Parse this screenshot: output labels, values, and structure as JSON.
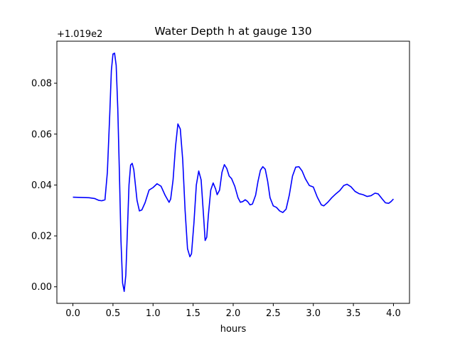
{
  "chart_data": {
    "type": "line",
    "title": "Water Depth h at gauge 130",
    "xlabel": "hours",
    "ylabel": "",
    "offset_label": "+1.019e2",
    "xlim": [
      -0.2,
      4.2
    ],
    "ylim": [
      -0.0065,
      0.0965
    ],
    "xticks": [
      0.0,
      0.5,
      1.0,
      1.5,
      2.0,
      2.5,
      3.0,
      3.5,
      4.0
    ],
    "xtick_labels": [
      "0.0",
      "0.5",
      "1.0",
      "1.5",
      "2.0",
      "2.5",
      "3.0",
      "3.5",
      "4.0"
    ],
    "yticks": [
      0.0,
      0.02,
      0.04,
      0.06,
      0.08
    ],
    "ytick_labels": [
      "0.00",
      "0.02",
      "0.04",
      "0.06",
      "0.08"
    ],
    "grid": false,
    "series": [
      {
        "color": "#0000ff",
        "x": [
          0.0,
          0.1,
          0.2,
          0.27,
          0.32,
          0.36,
          0.4,
          0.43,
          0.46,
          0.48,
          0.5,
          0.52,
          0.54,
          0.56,
          0.58,
          0.6,
          0.62,
          0.64,
          0.66,
          0.68,
          0.7,
          0.72,
          0.74,
          0.76,
          0.78,
          0.8,
          0.83,
          0.86,
          0.9,
          0.95,
          1.0,
          1.05,
          1.1,
          1.15,
          1.2,
          1.22,
          1.25,
          1.28,
          1.31,
          1.34,
          1.37,
          1.4,
          1.43,
          1.46,
          1.48,
          1.51,
          1.54,
          1.57,
          1.6,
          1.63,
          1.65,
          1.67,
          1.69,
          1.72,
          1.75,
          1.78,
          1.8,
          1.83,
          1.86,
          1.89,
          1.92,
          1.95,
          1.98,
          2.02,
          2.06,
          2.09,
          2.12,
          2.15,
          2.18,
          2.21,
          2.24,
          2.28,
          2.31,
          2.34,
          2.37,
          2.4,
          2.43,
          2.46,
          2.5,
          2.54,
          2.58,
          2.62,
          2.66,
          2.7,
          2.74,
          2.78,
          2.82,
          2.86,
          2.9,
          2.95,
          3.0,
          3.05,
          3.1,
          3.13,
          3.18,
          3.23,
          3.28,
          3.33,
          3.38,
          3.42,
          3.47,
          3.52,
          3.57,
          3.62,
          3.67,
          3.72,
          3.77,
          3.81,
          3.86,
          3.9,
          3.94,
          3.97,
          4.0
        ],
        "y": [
          0.0352,
          0.0351,
          0.035,
          0.0347,
          0.034,
          0.0338,
          0.0342,
          0.045,
          0.068,
          0.085,
          0.0915,
          0.0918,
          0.087,
          0.07,
          0.045,
          0.018,
          0.0015,
          -0.0018,
          0.0045,
          0.022,
          0.04,
          0.0478,
          0.0485,
          0.046,
          0.04,
          0.034,
          0.0298,
          0.0302,
          0.033,
          0.038,
          0.039,
          0.0405,
          0.0395,
          0.036,
          0.0332,
          0.0345,
          0.042,
          0.055,
          0.064,
          0.062,
          0.05,
          0.03,
          0.015,
          0.0118,
          0.013,
          0.025,
          0.04,
          0.0455,
          0.042,
          0.028,
          0.0182,
          0.0195,
          0.028,
          0.038,
          0.0408,
          0.0385,
          0.0362,
          0.038,
          0.045,
          0.048,
          0.0465,
          0.0435,
          0.0425,
          0.0395,
          0.035,
          0.0332,
          0.0335,
          0.0342,
          0.0335,
          0.0322,
          0.0325,
          0.036,
          0.0415,
          0.0458,
          0.0472,
          0.0462,
          0.0415,
          0.035,
          0.0318,
          0.0312,
          0.0298,
          0.0292,
          0.0305,
          0.036,
          0.0435,
          0.047,
          0.0472,
          0.0455,
          0.0425,
          0.0398,
          0.0392,
          0.0352,
          0.0322,
          0.0318,
          0.0332,
          0.035,
          0.0365,
          0.0378,
          0.0398,
          0.0403,
          0.0393,
          0.0375,
          0.0366,
          0.0362,
          0.0355,
          0.0358,
          0.0368,
          0.0365,
          0.0345,
          0.033,
          0.0328,
          0.0335,
          0.0345
        ]
      }
    ]
  }
}
